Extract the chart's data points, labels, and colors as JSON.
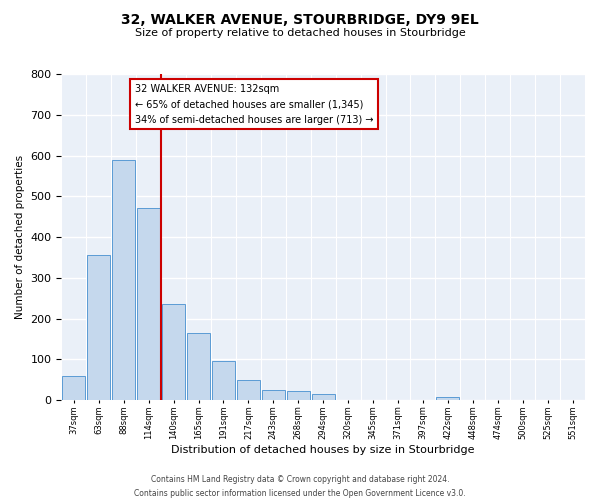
{
  "title": "32, WALKER AVENUE, STOURBRIDGE, DY9 9EL",
  "subtitle": "Size of property relative to detached houses in Stourbridge",
  "xlabel": "Distribution of detached houses by size in Stourbridge",
  "ylabel": "Number of detached properties",
  "bar_labels": [
    "37sqm",
    "63sqm",
    "88sqm",
    "114sqm",
    "140sqm",
    "165sqm",
    "191sqm",
    "217sqm",
    "243sqm",
    "268sqm",
    "294sqm",
    "320sqm",
    "345sqm",
    "371sqm",
    "397sqm",
    "422sqm",
    "448sqm",
    "474sqm",
    "500sqm",
    "525sqm",
    "551sqm"
  ],
  "bar_values": [
    58,
    355,
    590,
    470,
    235,
    165,
    95,
    48,
    25,
    22,
    15,
    0,
    0,
    0,
    0,
    8,
    0,
    0,
    0,
    0,
    0
  ],
  "bar_color": "#c5d8ed",
  "bar_edge_color": "#5b9bd5",
  "vline_color": "#cc0000",
  "ylim": [
    0,
    800
  ],
  "yticks": [
    0,
    100,
    200,
    300,
    400,
    500,
    600,
    700,
    800
  ],
  "annotation_title": "32 WALKER AVENUE: 132sqm",
  "annotation_line1": "← 65% of detached houses are smaller (1,345)",
  "annotation_line2": "34% of semi-detached houses are larger (713) →",
  "annotation_box_color": "#ffffff",
  "annotation_box_edge": "#cc0000",
  "footer_line1": "Contains HM Land Registry data © Crown copyright and database right 2024.",
  "footer_line2": "Contains public sector information licensed under the Open Government Licence v3.0.",
  "plot_bg_color": "#eaf0f8"
}
